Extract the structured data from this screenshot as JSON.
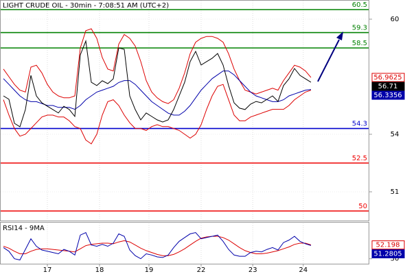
{
  "chart_data": [
    {
      "type": "line",
      "title": "LIGHT CRUDE OIL - 30min - 7:08:51 AM (UTC+2)",
      "ylim": [
        49.5,
        61
      ],
      "yticks": [
        60,
        54,
        51
      ],
      "grid": true,
      "levels": [
        {
          "value": 60.5,
          "color": "#008000"
        },
        {
          "value": 59.3,
          "color": "#008000"
        },
        {
          "value": 58.5,
          "color": "#008000"
        },
        {
          "value": 54.3,
          "color": "#0000cc"
        },
        {
          "value": 52.5,
          "color": "#ee0000"
        },
        {
          "value": 50,
          "color": "#ee0000"
        }
      ],
      "series": [
        {
          "color": "#dd0000",
          "end_label": "outline",
          "values": [
            57.4,
            57.0,
            56.6,
            56.3,
            56.2,
            57.5,
            57.6,
            57.2,
            56.6,
            56.2,
            56.0,
            55.9,
            55.9,
            56.0,
            58.5,
            59.4,
            59.5,
            59.0,
            58.0,
            57.4,
            57.3,
            58.7,
            59.2,
            59.0,
            58.6,
            57.8,
            56.8,
            56.2,
            55.9,
            55.7,
            55.6,
            55.8,
            56.4,
            57.2,
            58.2,
            58.8,
            59.0,
            59.1,
            59.1,
            59.0,
            58.8,
            58.2,
            57.4,
            56.8,
            56.3,
            56.2,
            56.1,
            56.2,
            56.3,
            56.4,
            56.3,
            56.8,
            57.2,
            57.6,
            57.5,
            57.3,
            56.9625
          ]
        },
        {
          "color": "#dd0000",
          "values": [
            55.8,
            55.0,
            54.3,
            53.9,
            54.0,
            54.3,
            54.6,
            54.9,
            55.0,
            55.0,
            54.9,
            54.9,
            54.7,
            54.4,
            54.3,
            53.7,
            53.5,
            54.0,
            55.0,
            55.7,
            55.8,
            55.5,
            55.0,
            54.6,
            54.3,
            54.3,
            54.2,
            54.4,
            54.5,
            54.4,
            54.4,
            54.3,
            54.2,
            54.0,
            53.8,
            54.0,
            54.5,
            55.3,
            56.0,
            56.5,
            56.6,
            55.8,
            55.0,
            54.7,
            54.7,
            54.9,
            55.0,
            55.1,
            55.2,
            55.3,
            55.3,
            55.3,
            55.5,
            55.8,
            56.0,
            56.2,
            56.3
          ]
        },
        {
          "color": "#0000aa",
          "end_label": "filled",
          "values": [
            56.9,
            56.6,
            56.3,
            56.0,
            55.8,
            55.7,
            55.7,
            55.6,
            55.5,
            55.5,
            55.4,
            55.4,
            55.4,
            55.3,
            55.5,
            55.8,
            56.0,
            56.2,
            56.3,
            56.4,
            56.5,
            56.7,
            56.8,
            56.8,
            56.6,
            56.3,
            56.0,
            55.7,
            55.5,
            55.3,
            55.1,
            55.0,
            55.0,
            55.2,
            55.5,
            55.9,
            56.3,
            56.6,
            56.9,
            57.1,
            57.3,
            57.3,
            57.1,
            56.8,
            56.5,
            56.2,
            56.0,
            55.9,
            55.8,
            55.7,
            55.7,
            55.8,
            56.0,
            56.1,
            56.2,
            56.3,
            56.3356
          ]
        },
        {
          "color": "#000000",
          "end_label": "filled",
          "values": [
            56.0,
            55.82,
            54.57,
            54.39,
            55.29,
            57.07,
            56.0,
            55.64,
            55.46,
            55.29,
            55.11,
            55.46,
            55.29,
            54.93,
            58.14,
            58.86,
            56.71,
            56.54,
            56.79,
            56.64,
            56.89,
            58.5,
            58.43,
            56.0,
            55.29,
            54.75,
            55.11,
            54.93,
            54.75,
            54.64,
            54.75,
            55.29,
            56.0,
            56.71,
            57.79,
            58.32,
            57.61,
            57.79,
            57.96,
            58.21,
            57.61,
            56.54,
            55.64,
            55.36,
            55.29,
            55.57,
            55.71,
            55.64,
            55.82,
            56.0,
            55.71,
            56.54,
            56.89,
            57.43,
            57.07,
            56.89,
            56.71
          ]
        }
      ]
    },
    {
      "type": "line",
      "title": "RSI14 - 9MA",
      "xlim": [
        0,
        66.5
      ],
      "xticks": [
        {
          "value": 8,
          "label": "17"
        },
        {
          "value": 17.5,
          "label": "18"
        },
        {
          "value": 26.5,
          "label": "19"
        },
        {
          "value": 36,
          "label": "22"
        },
        {
          "value": 45.4,
          "label": "23"
        },
        {
          "value": 54.6,
          "label": "24"
        }
      ],
      "ylim": [
        22,
        88
      ],
      "yticks": [
        30
      ],
      "series": [
        {
          "color": "#dd0000",
          "end_label": "outline",
          "values": [
            50,
            47,
            42,
            38,
            38,
            42,
            45,
            46,
            46,
            45,
            44,
            43,
            42,
            41,
            46,
            51,
            53,
            54,
            55,
            55,
            54,
            57,
            59,
            57,
            52,
            47,
            43,
            40,
            37,
            35,
            35,
            37,
            41,
            46,
            52,
            58,
            63,
            65,
            66,
            66,
            64,
            60,
            54,
            48,
            43,
            40,
            38,
            38,
            39,
            41,
            43,
            46,
            49,
            53,
            55,
            55,
            52.198
          ]
        },
        {
          "color": "#0000aa",
          "end_label": "filled",
          "values": [
            48,
            42,
            30,
            28,
            45,
            62,
            50,
            44,
            42,
            40,
            38,
            45,
            42,
            36,
            68,
            72,
            52,
            50,
            53,
            50,
            55,
            70,
            66,
            44,
            35,
            30,
            38,
            36,
            33,
            32,
            36,
            48,
            58,
            64,
            70,
            72,
            62,
            64,
            66,
            68,
            58,
            45,
            36,
            34,
            34,
            40,
            42,
            41,
            45,
            48,
            44,
            56,
            60,
            66,
            58,
            54,
            51.2805
          ]
        }
      ]
    }
  ]
}
